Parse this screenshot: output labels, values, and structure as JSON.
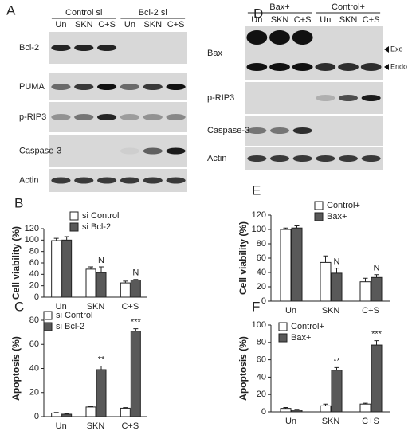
{
  "blots": [
    {
      "panel": "A",
      "groups": [
        "Control si",
        "Bcl-2 si"
      ],
      "lanes": [
        "Un",
        "SKN",
        "C+S",
        "Un",
        "SKN",
        "C+S"
      ],
      "rows": [
        "Bcl-2",
        "PUMA",
        "p-RIP3",
        "Caspase-3",
        "Actin"
      ]
    },
    {
      "panel": "D",
      "groups": [
        "Bax+",
        "Control+"
      ],
      "lanes": [
        "Un",
        "SKN",
        "C+S",
        "Un",
        "SKN",
        "C+S"
      ],
      "rows": [
        "Bax",
        "p-RIP3",
        "Caspase-3",
        "Actin"
      ],
      "markers": [
        "Exo",
        "Endo"
      ]
    }
  ],
  "chart_data": [
    {
      "type": "bar",
      "panel": "B",
      "y_label": "Cell viability (%)",
      "categories": [
        "Un",
        "SKN",
        "C+S"
      ],
      "ylim": [
        0,
        120
      ],
      "yticks": [
        0,
        20,
        40,
        60,
        80,
        100,
        120
      ],
      "legend": "upper right",
      "series": [
        {
          "name": "si Control",
          "color": "#ffffff",
          "values": [
            99,
            49,
            25
          ],
          "errors": [
            4,
            4,
            3
          ]
        },
        {
          "name": "si Bcl-2",
          "color": "#595959",
          "values": [
            100,
            43,
            30
          ],
          "errors": [
            6,
            10,
            1
          ],
          "annotations": [
            null,
            "N",
            "N"
          ]
        }
      ]
    },
    {
      "type": "bar",
      "panel": "C",
      "y_label": "Apoptosis (%)",
      "categories": [
        "Un",
        "SKN",
        "C+S"
      ],
      "ylim": [
        0,
        80
      ],
      "yticks": [
        0,
        20,
        40,
        60,
        80
      ],
      "legend": "upper left",
      "series": [
        {
          "name": "si Control",
          "color": "#ffffff",
          "values": [
            3,
            8,
            7
          ],
          "errors": [
            0.5,
            0.5,
            0.5
          ]
        },
        {
          "name": "si Bcl-2",
          "color": "#595959",
          "values": [
            2,
            39,
            71
          ],
          "errors": [
            0.5,
            3,
            2
          ],
          "annotations": [
            null,
            "**",
            "***"
          ]
        }
      ]
    },
    {
      "type": "bar",
      "panel": "E",
      "y_label": "Cell viability (%)",
      "categories": [
        "Un",
        "SKN",
        "C+S"
      ],
      "ylim": [
        0,
        120
      ],
      "yticks": [
        0,
        20,
        40,
        60,
        80,
        100,
        120
      ],
      "legend": "upper right",
      "series": [
        {
          "name": "Control+",
          "color": "#ffffff",
          "values": [
            100,
            54,
            27
          ],
          "errors": [
            2,
            9,
            5
          ]
        },
        {
          "name": "Bax+",
          "color": "#595959",
          "values": [
            102,
            39,
            33
          ],
          "errors": [
            3,
            7,
            4
          ],
          "annotations": [
            null,
            "N",
            "N"
          ]
        }
      ]
    },
    {
      "type": "bar",
      "panel": "F",
      "y_label": "Apoptosis (%)",
      "categories": [
        "Un",
        "SKN",
        "C+S"
      ],
      "ylim": [
        0,
        100
      ],
      "yticks": [
        0,
        20,
        40,
        60,
        80,
        100
      ],
      "legend": "upper left",
      "series": [
        {
          "name": "Control+",
          "color": "#ffffff",
          "values": [
            4,
            7,
            9
          ],
          "errors": [
            1,
            2,
            1
          ]
        },
        {
          "name": "Bax+",
          "color": "#595959",
          "values": [
            2,
            48,
            77
          ],
          "errors": [
            1,
            3,
            5
          ],
          "annotations": [
            null,
            "**",
            "***"
          ]
        }
      ]
    }
  ]
}
